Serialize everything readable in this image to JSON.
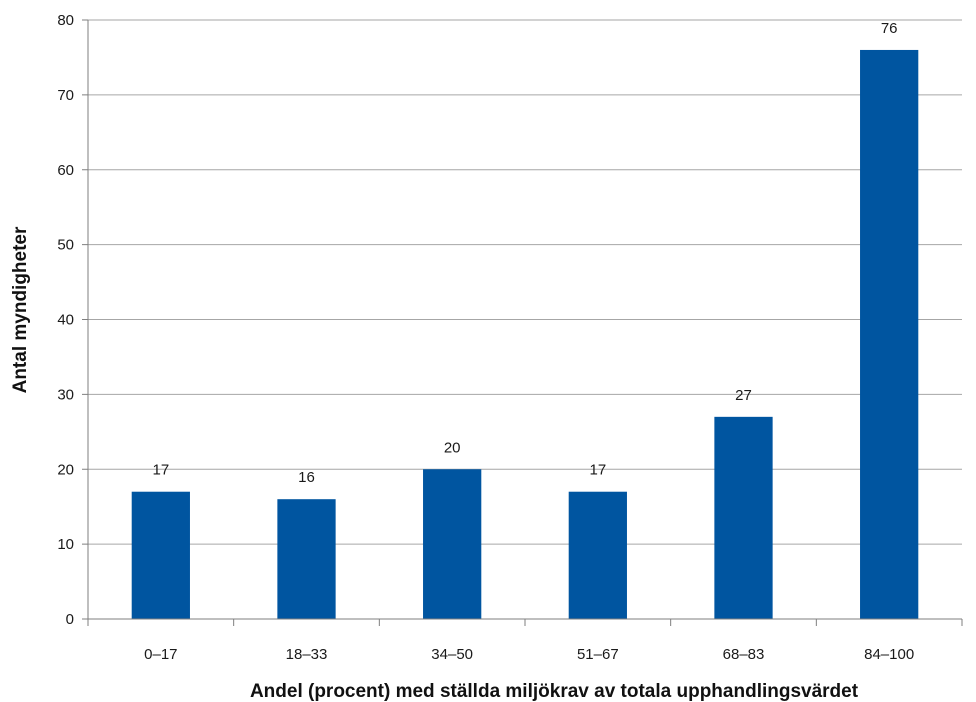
{
  "chart_data": {
    "type": "bar",
    "categories": [
      "0–17",
      "18–33",
      "34–50",
      "51–67",
      "68–83",
      "84–100"
    ],
    "values": [
      17,
      16,
      20,
      17,
      27,
      76
    ],
    "data_labels": [
      "17",
      "16",
      "20",
      "17",
      "27",
      "76"
    ],
    "xlabel": "Andel (procent) med ställda miljökrav av totala upphandlingsvärdet",
    "ylabel": "Antal myndigheter",
    "ylim": [
      0,
      80
    ],
    "yticks": [
      0,
      10,
      20,
      30,
      40,
      50,
      60,
      70,
      80
    ],
    "ytick_labels": [
      "0",
      "10",
      "20",
      "30",
      "40",
      "50",
      "60",
      "70",
      "80"
    ],
    "grid": true,
    "legend": "none",
    "bar_color": "#0055a0",
    "grid_color": "#a6a6a6"
  }
}
